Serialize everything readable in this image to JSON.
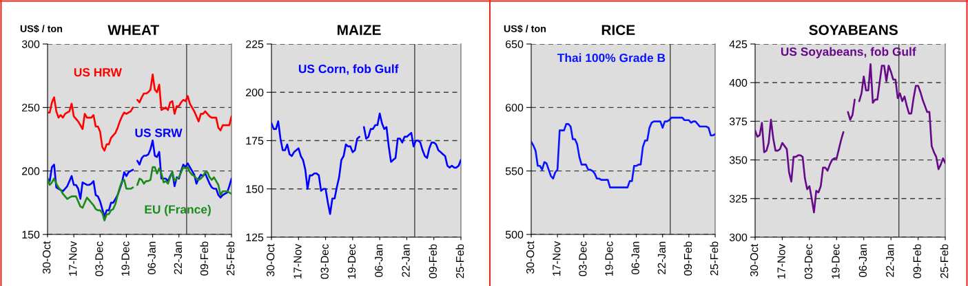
{
  "chart_data": [
    {
      "type": "line",
      "title": "WHEAT",
      "ylabel": "US$ / ton",
      "categories": [
        "30-Oct",
        null,
        null,
        null,
        null,
        null,
        null,
        null,
        null,
        null,
        null,
        null,
        "17-Nov",
        null,
        null,
        null,
        null,
        null,
        null,
        null,
        null,
        null,
        null,
        null,
        "03-Dec",
        null,
        null,
        null,
        null,
        null,
        null,
        null,
        null,
        null,
        null,
        null,
        "19-Dec",
        null,
        null,
        null,
        null,
        null,
        null,
        null,
        null,
        null,
        null,
        null,
        "06-Jan",
        null,
        null,
        null,
        null,
        null,
        null,
        null,
        null,
        null,
        null,
        null,
        "22-Jan",
        null,
        null,
        null,
        null,
        null,
        null,
        null,
        null,
        null,
        null,
        null,
        "09-Feb",
        null,
        null,
        null,
        null,
        null,
        null,
        null,
        null,
        null,
        null,
        null,
        "25-Feb"
      ],
      "ylim": [
        150,
        300
      ],
      "yticks": [
        150,
        200,
        250,
        300
      ],
      "grid": "y",
      "series": [
        {
          "name": "US HRW",
          "color": "#ff0000",
          "values": [
            246,
            246,
            254,
            258,
            247,
            242,
            244,
            242,
            245,
            246,
            247,
            253,
            243,
            241,
            239,
            236,
            233,
            245,
            242,
            242,
            242,
            244,
            235,
            235,
            231,
            219,
            216,
            221,
            221,
            226,
            228,
            230,
            234,
            239,
            243,
            246,
            245,
            246,
            247,
            250,
            null,
            256,
            254,
            258,
            261,
            261,
            262,
            264,
            276,
            264,
            262,
            268,
            248,
            249,
            250,
            248,
            254,
            255,
            245,
            251,
            251,
            254,
            256,
            255,
            259,
            253,
            250,
            247,
            243,
            239,
            245,
            245,
            247,
            245,
            243,
            242,
            242,
            242,
            234,
            232,
            236,
            236,
            236,
            236,
            243
          ]
        },
        {
          "name": "US SRW",
          "color": "#0000ff",
          "values": [
            194,
            192,
            203,
            205,
            187,
            186,
            185,
            184,
            186,
            188,
            192,
            196,
            189,
            189,
            186,
            178,
            191,
            190,
            189,
            189,
            190,
            192,
            181,
            180,
            176,
            170,
            164,
            169,
            169,
            175,
            175,
            178,
            181,
            186,
            191,
            199,
            196,
            199,
            200,
            201,
            null,
            208,
            205,
            210,
            212,
            212,
            213,
            217,
            224,
            212,
            211,
            215,
            194,
            194,
            194,
            192,
            196,
            199,
            188,
            195,
            194,
            200,
            205,
            203,
            206,
            203,
            200,
            197,
            190,
            194,
            197,
            196,
            198,
            194,
            190,
            187,
            186,
            186,
            181,
            179,
            181,
            182,
            183,
            188,
            194
          ]
        },
        {
          "name": "EU (France)",
          "color": "#1a8a1a",
          "values": [
            194,
            189,
            191,
            194,
            190,
            187,
            185,
            182,
            180,
            178,
            179,
            180,
            180,
            180,
            176,
            172,
            171,
            175,
            179,
            177,
            175,
            173,
            170,
            169,
            169,
            167,
            161,
            166,
            166,
            169,
            170,
            174,
            181,
            187,
            192,
            193,
            186,
            186,
            186,
            187,
            null,
            189,
            194,
            193,
            190,
            192,
            192,
            193,
            203,
            203,
            198,
            202,
            198,
            191,
            192,
            190,
            195,
            199,
            192,
            194,
            195,
            199,
            203,
            202,
            203,
            199,
            197,
            196,
            194,
            193,
            194,
            196,
            199,
            199,
            195,
            193,
            195,
            192,
            189,
            181,
            184,
            184,
            184,
            183,
            182
          ]
        }
      ]
    },
    {
      "type": "line",
      "title": "MAIZE",
      "categories": [
        "30-Oct",
        null,
        null,
        null,
        null,
        null,
        null,
        null,
        null,
        null,
        null,
        null,
        "17-Nov",
        null,
        null,
        null,
        null,
        null,
        null,
        null,
        null,
        null,
        null,
        null,
        "03-Dec",
        null,
        null,
        null,
        null,
        null,
        null,
        null,
        null,
        null,
        null,
        null,
        "19-Dec",
        null,
        null,
        null,
        null,
        null,
        null,
        null,
        null,
        null,
        null,
        null,
        "06-Jan",
        null,
        null,
        null,
        null,
        null,
        null,
        null,
        null,
        null,
        null,
        null,
        "22-Jan",
        null,
        null,
        null,
        null,
        null,
        null,
        null,
        null,
        null,
        null,
        null,
        "09-Feb",
        null,
        null,
        null,
        null,
        null,
        null,
        null,
        null,
        null,
        null,
        null,
        "25-Feb"
      ],
      "ylim": [
        125,
        225
      ],
      "yticks": [
        125,
        150,
        175,
        200,
        225
      ],
      "grid": "y",
      "series": [
        {
          "name": "US Corn, fob Gulf",
          "color": "#0000ff",
          "values": [
            184,
            181,
            181,
            185,
            176,
            170,
            170,
            173,
            168,
            167,
            169,
            170,
            171,
            167,
            165,
            160,
            150,
            157,
            157,
            158,
            158,
            157,
            149,
            150,
            150,
            143,
            137,
            145,
            145,
            151,
            156,
            165,
            167,
            173,
            172,
            172,
            169,
            170,
            176,
            177,
            null,
            182,
            176,
            177,
            181,
            181,
            183,
            183,
            189,
            184,
            181,
            182,
            172,
            164,
            165,
            166,
            176,
            176,
            174,
            177,
            177,
            178,
            179,
            172,
            175,
            175,
            174,
            170,
            167,
            166,
            171,
            174,
            174,
            173,
            170,
            169,
            168,
            167,
            162,
            161,
            162,
            161,
            161,
            162,
            165
          ]
        }
      ]
    },
    {
      "type": "line",
      "title": "RICE",
      "ylabel": "US$ / ton",
      "categories": [
        "30-Oct",
        null,
        null,
        null,
        null,
        null,
        null,
        null,
        null,
        null,
        null,
        null,
        "17-Nov",
        null,
        null,
        null,
        null,
        null,
        null,
        null,
        null,
        null,
        null,
        null,
        "03-Dec",
        null,
        null,
        null,
        null,
        null,
        null,
        null,
        null,
        null,
        null,
        null,
        "19-Dec",
        null,
        null,
        null,
        null,
        null,
        null,
        null,
        null,
        null,
        null,
        null,
        "06-Jan",
        null,
        null,
        null,
        null,
        null,
        null,
        null,
        null,
        null,
        null,
        null,
        "22-Jan",
        null,
        null,
        null,
        null,
        null,
        null,
        null,
        null,
        null,
        null,
        null,
        "09-Feb",
        null,
        null,
        null,
        null,
        null,
        null,
        null,
        null,
        null,
        null,
        null,
        "25-Feb"
      ],
      "ylim": [
        500,
        650
      ],
      "yticks": [
        500,
        550,
        600,
        650
      ],
      "grid": "y",
      "series": [
        {
          "name": "Thai 100% Grade B",
          "color": "#0a14ff",
          "values": [
            573,
            570,
            566,
            554,
            554,
            551,
            557,
            556,
            551,
            546,
            544,
            549,
            551,
            582,
            582,
            582,
            587,
            587,
            585,
            575,
            575,
            571,
            561,
            555,
            555,
            555,
            551,
            551,
            550,
            548,
            544,
            544,
            543,
            543,
            543,
            543,
            537,
            537,
            537,
            537,
            537,
            537,
            537,
            537,
            537,
            542,
            542,
            554,
            554,
            555,
            555,
            569,
            574,
            574,
            584,
            588,
            589,
            589,
            589,
            589,
            584,
            589,
            589,
            590,
            592,
            592,
            592,
            592,
            592,
            592,
            590,
            590,
            590,
            588,
            589,
            589,
            587,
            585,
            585,
            585,
            585,
            584,
            578,
            578,
            579
          ]
        }
      ]
    },
    {
      "type": "line",
      "title": "SOYABEANS",
      "categories": [
        "30-Oct",
        null,
        null,
        null,
        null,
        null,
        null,
        null,
        null,
        null,
        null,
        null,
        "17-Nov",
        null,
        null,
        null,
        null,
        null,
        null,
        null,
        null,
        null,
        null,
        null,
        "03-Dec",
        null,
        null,
        null,
        null,
        null,
        null,
        null,
        null,
        null,
        null,
        null,
        "19-Dec",
        null,
        null,
        null,
        null,
        null,
        null,
        null,
        null,
        null,
        null,
        null,
        "06-Jan",
        null,
        null,
        null,
        null,
        null,
        null,
        null,
        null,
        null,
        null,
        null,
        "22-Jan",
        null,
        null,
        null,
        null,
        null,
        null,
        null,
        null,
        null,
        null,
        null,
        "09-Feb",
        null,
        null,
        null,
        null,
        null,
        null,
        null,
        null,
        null,
        null,
        null,
        "25-Feb"
      ],
      "ylim": [
        300,
        425
      ],
      "yticks": [
        300,
        325,
        350,
        375,
        400,
        425
      ],
      "grid": "y",
      "series": [
        {
          "name": "US Soyabeans, fob Gulf",
          "color": "#660a8a",
          "values": [
            369,
            365,
            366,
            374,
            355,
            356,
            361,
            376,
            364,
            356,
            356,
            357,
            361,
            359,
            357,
            342,
            336,
            352,
            352,
            353,
            353,
            352,
            338,
            331,
            333,
            325,
            316,
            330,
            329,
            333,
            345,
            345,
            343,
            347,
            350,
            351,
            351,
            357,
            363,
            368,
            null,
            381,
            376,
            379,
            389,
            null,
            388,
            393,
            404,
            395,
            395,
            412,
            387,
            389,
            389,
            400,
            411,
            411,
            401,
            411,
            407,
            402,
            402,
            390,
            393,
            388,
            391,
            385,
            380,
            380,
            390,
            398,
            398,
            394,
            389,
            385,
            381,
            381,
            359,
            355,
            352,
            344,
            347,
            351,
            348
          ]
        }
      ]
    }
  ]
}
